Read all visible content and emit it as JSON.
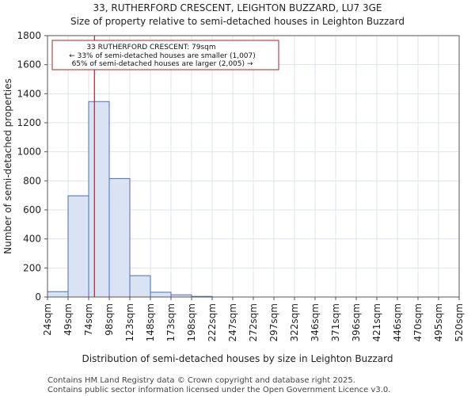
{
  "chart_data": {
    "type": "bar",
    "title": "33, RUTHERFORD CRESCENT, LEIGHTON BUZZARD, LU7 3GE",
    "subtitle": "Size of property relative to semi-detached houses in Leighton Buzzard",
    "xlabel": "Distribution of semi-detached houses by size in Leighton Buzzard",
    "ylabel": "Number of semi-detached properties",
    "ylim": [
      0,
      1800
    ],
    "yticks": [
      0,
      200,
      400,
      600,
      800,
      1000,
      1200,
      1400,
      1600,
      1800
    ],
    "grid": true,
    "bin_edges": [
      "24sqm",
      "49sqm",
      "74sqm",
      "98sqm",
      "123sqm",
      "148sqm",
      "173sqm",
      "198sqm",
      "222sqm",
      "247sqm",
      "272sqm",
      "297sqm",
      "322sqm",
      "346sqm",
      "371sqm",
      "396sqm",
      "421sqm",
      "446sqm",
      "470sqm",
      "495sqm",
      "520sqm"
    ],
    "values": [
      37,
      697,
      1346,
      816,
      147,
      33,
      15,
      4,
      0,
      0,
      0,
      0,
      0,
      0,
      0,
      0,
      0,
      0,
      0,
      0
    ],
    "marker": {
      "value_sqm": 79,
      "bin_position": 2.28
    },
    "annotation": {
      "line1": "33 RUTHERFORD CRESCENT: 79sqm",
      "line2": "← 33% of semi-detached houses are smaller (1,007)",
      "line3": "65% of semi-detached houses are larger (2,005) →"
    },
    "colors": {
      "bar_fill": "#dae3f4",
      "bar_stroke": "#4a6fb3",
      "marker": "#b22222",
      "grid": "#dde3ec"
    }
  },
  "footer": {
    "line1": "Contains HM Land Registry data © Crown copyright and database right 2025.",
    "line2": "Contains public sector information licensed under the Open Government Licence v3.0."
  }
}
